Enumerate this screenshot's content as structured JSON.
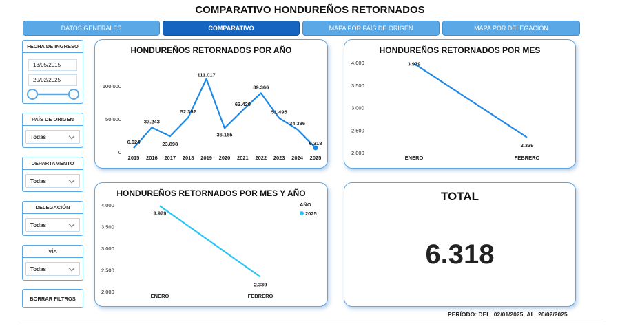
{
  "page": {
    "title": "COMPARATIVO HONDUREÑOS RETORNADOS"
  },
  "tabs": [
    {
      "label": "DATOS GENERALES"
    },
    {
      "label": "COMPARATIVO"
    },
    {
      "label": "MAPA POR PAÍS DE ORIGEN"
    },
    {
      "label": "MAPA POR DELEGACIÓN"
    }
  ],
  "filters": {
    "fecha": {
      "label": "FECHA DE INGRESO",
      "start": "13/05/2015",
      "end": "20/02/2025"
    },
    "pais": {
      "label": "PAÍS DE ORIGEN",
      "value": "Todas"
    },
    "departamento": {
      "label": "DEPARTAMENTO",
      "value": "Todas"
    },
    "delegacion": {
      "label": "DELEGACIÓN",
      "value": "Todas"
    },
    "via": {
      "label": "VÍA",
      "value": "Todas"
    },
    "clear_label": "BORRAR FILTROS"
  },
  "chart_data": [
    {
      "type": "line",
      "title": "HONDUREÑOS RETORNADOS POR AÑO",
      "categories": [
        "2015",
        "2016",
        "2017",
        "2018",
        "2019",
        "2020",
        "2021",
        "2022",
        "2023",
        "2024",
        "2025"
      ],
      "values": [
        6024,
        37243,
        23898,
        52352,
        111017,
        36165,
        63420,
        89366,
        51495,
        34386,
        6318
      ],
      "labels": [
        "6.024",
        "37.243",
        "23.898",
        "52.352",
        "111.017",
        "36.165",
        "63.420",
        "89.366",
        "51.495",
        "34.386",
        "6.318"
      ],
      "yticks": [
        "100.000",
        "50.000",
        "0"
      ],
      "ytick_values": [
        100000,
        50000,
        0
      ],
      "ylim": [
        0,
        120000
      ],
      "color": "#1e88e5"
    },
    {
      "type": "line",
      "title": "HONDUREÑOS RETORNADOS POR MES",
      "categories": [
        "ENERO",
        "FEBRERO"
      ],
      "values": [
        3979,
        2339
      ],
      "labels": [
        "3.979",
        "2.339"
      ],
      "yticks": [
        "4.000",
        "3.500",
        "3.000",
        "2.500",
        "2.000"
      ],
      "ytick_values": [
        4000,
        3500,
        3000,
        2500,
        2000
      ],
      "ylim": [
        2000,
        4000
      ],
      "color": "#1e88e5"
    },
    {
      "type": "line",
      "title": "HONDUREÑOS RETORNADOS POR MES Y AÑO",
      "categories": [
        "ENERO",
        "FEBRERO"
      ],
      "values": [
        3979,
        2339
      ],
      "labels": [
        "3.979",
        "2.339"
      ],
      "yticks": [
        "4.000",
        "3.500",
        "3.000",
        "2.500",
        "2.000"
      ],
      "ytick_values": [
        4000,
        3500,
        3000,
        2500,
        2000
      ],
      "ylim": [
        2000,
        4000
      ],
      "legend_title": "AÑO",
      "series": [
        {
          "name": "2025",
          "values": [
            3979,
            2339
          ]
        }
      ],
      "color": "#29c5f6"
    }
  ],
  "total": {
    "label": "TOTAL",
    "value": "6.318"
  },
  "period": {
    "prefix": "PERÍODO: DEL",
    "start": "02/01/2025",
    "middle": "AL",
    "end": "20/02/2025"
  }
}
